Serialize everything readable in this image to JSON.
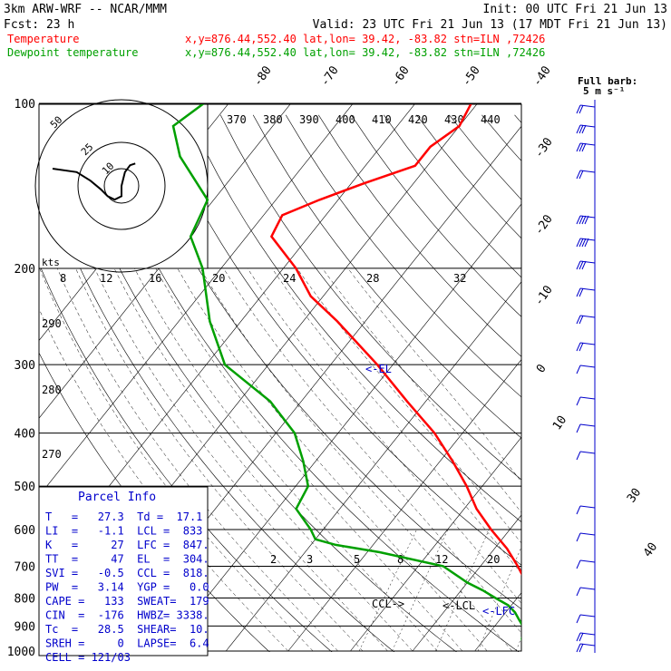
{
  "header": {
    "title": "3km ARW-WRF -- NCAR/MMM",
    "init": "Init: 00 UTC Fri 21 Jun 13",
    "fcst": "Fcst:    23 h",
    "valid": "Valid: 23 UTC Fri 21 Jun 13 (17 MDT Fri 21 Jun 13)"
  },
  "legend": [
    {
      "name": "Temperature",
      "info": "x,y=876.44,552.40   lat,lon= 39.42, -83.82  stn=ILN ,72426",
      "color": "#ff0000"
    },
    {
      "name": "Dewpoint temperature",
      "info": "x,y=876.44,552.40   lat,lon= 39.42, -83.82  stn=ILN ,72426",
      "color": "#00a000"
    }
  ],
  "barb_title": "Full barb:",
  "barb_unit": "5 m s⁻¹",
  "hodograph": {
    "units": "kts",
    "ring_labels": [
      "50",
      "25",
      "10"
    ],
    "path": [
      [
        -40,
        10
      ],
      [
        -26,
        8
      ],
      [
        -18,
        3
      ],
      [
        -12,
        -2
      ],
      [
        -8,
        -6
      ],
      [
        -4,
        -8
      ],
      [
        0,
        -6
      ],
      [
        0,
        0
      ],
      [
        2,
        8
      ],
      [
        5,
        12
      ],
      [
        8,
        13
      ]
    ]
  },
  "theta_labels": [
    "370",
    "380",
    "390",
    "400",
    "410",
    "420",
    "430",
    "440"
  ],
  "mixing_labels_top": [
    "8",
    "12",
    "16",
    "20",
    "24",
    "28",
    "32"
  ],
  "mixing_labels_low": [
    "2",
    "3",
    "5",
    "8",
    "12",
    "20"
  ],
  "dry_labels": [
    "290",
    "280",
    "270"
  ],
  "parcel": {
    "title": "Parcel Info",
    "rows": [
      "T   =   27.3  Td =  17.1",
      "LI  =   -1.1  LCL =  833",
      "K   =     27  LFC =  847.",
      "TT  =     47  EL  =  304.",
      "SVI =   -0.5  CCL =  818.",
      "PW  =   3.14  YGP =   0.0",
      "CAPE =   133  SWEAT=  179",
      "CIN  =  -176  HWBZ= 3338.",
      "Tc  =   28.5  SHEAR=  10.",
      "SREH =     0  LAPSE=  6.4",
      "CELL = 121/03"
    ]
  },
  "markers": {
    "el": "<-EL",
    "ccl": "CCL->",
    "lcl": "<-LCL",
    "lfc": "<-LFC"
  },
  "chart_data": {
    "type": "line",
    "title": "3km ARW-WRF -- NCAR/MMM",
    "xlabel": "",
    "ylabel": "",
    "y_scale": "log pressure (hPa)",
    "ylim": [
      1000,
      100
    ],
    "pressure_ticks": [
      100,
      200,
      300,
      400,
      500,
      600,
      700,
      800,
      900,
      1000
    ],
    "isotherm_labels": [
      -80,
      -70,
      -60,
      -50,
      -40,
      -30,
      -20,
      -10,
      0,
      10,
      30,
      40
    ],
    "series": [
      {
        "name": "Temperature",
        "color": "#ff0000",
        "unit": "C",
        "pressure": [
          975,
          950,
          925,
          900,
          875,
          850,
          825,
          800,
          775,
          750,
          700,
          650,
          600,
          550,
          500,
          450,
          400,
          350,
          300,
          250,
          225,
          200,
          175,
          160,
          150,
          140,
          130,
          120,
          110,
          100
        ],
        "values": [
          27.3,
          25.0,
          22.5,
          20.0,
          18.0,
          16.5,
          15.0,
          13.0,
          11.0,
          9.5,
          6.0,
          2.0,
          -3.0,
          -8.0,
          -12.5,
          -18.0,
          -24.5,
          -33.0,
          -42.5,
          -54.5,
          -62.0,
          -68.0,
          -76.0,
          -77.0,
          -73.0,
          -68.0,
          -62.0,
          -62.0,
          -60.0,
          -61.0
        ]
      },
      {
        "name": "Dewpoint temperature",
        "color": "#00a000",
        "unit": "C",
        "pressure": [
          975,
          950,
          925,
          900,
          875,
          850,
          825,
          800,
          775,
          750,
          700,
          660,
          640,
          625,
          600,
          550,
          500,
          450,
          400,
          350,
          300,
          250,
          200,
          175,
          150,
          125,
          110,
          100
        ],
        "values": [
          17.1,
          16.0,
          15.5,
          14.5,
          13.0,
          11.5,
          9.5,
          6.5,
          3.5,
          0.0,
          -6.0,
          -18.0,
          -26.0,
          -30.0,
          -32.0,
          -37.0,
          -38.0,
          -42.0,
          -47.0,
          -55.0,
          -67.0,
          -75.0,
          -83.0,
          -89.0,
          -91.0,
          -101.0,
          -106.0,
          -104.0
        ]
      }
    ]
  }
}
